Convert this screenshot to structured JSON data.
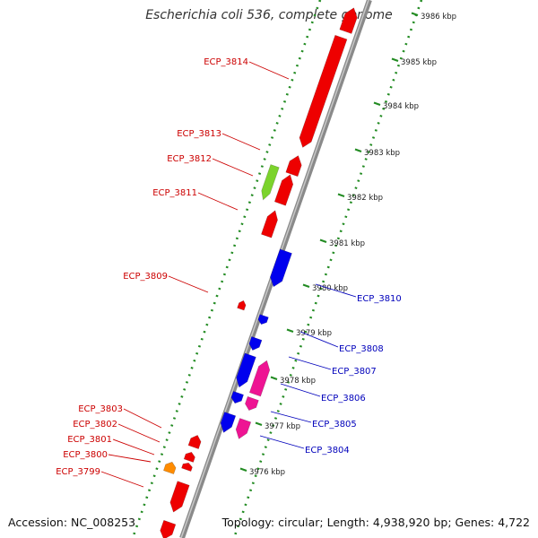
{
  "title": "Escherichia coli 536, complete genome",
  "footer": {
    "accession": "Accession: NC_008253",
    "summary": "Topology: circular; Length: 4,938,920 bp; Genes: 4,722"
  },
  "colors": {
    "backbone": "#808080",
    "dots": "#228b22",
    "gene_red": "#ee0000",
    "gene_blue": "#0000ee",
    "gene_pink": "#ee1493",
    "gene_green": "#7cd32c",
    "gene_orange": "#ff8c00",
    "label_red": "#cc0000",
    "label_blue": "#0000bb"
  },
  "scale_labels": [
    "3986 kbp",
    "3985 kbp",
    "3984 kbp",
    "3983 kbp",
    "3982 kbp",
    "3981 kbp",
    "3980 kbp",
    "3979 kbp",
    "3978 kbp",
    "3977 kbp",
    "3976 kbp"
  ],
  "left_labels": [
    "ECP_3814",
    "ECP_3813",
    "ECP_3812",
    "ECP_3811",
    "ECP_3809",
    "ECP_3803",
    "ECP_3802",
    "ECP_3801",
    "ECP_3800",
    "ECP_3799"
  ],
  "right_labels": [
    "ECP_3810",
    "ECP_3808",
    "ECP_3807",
    "ECP_3806",
    "ECP_3805",
    "ECP_3804"
  ]
}
